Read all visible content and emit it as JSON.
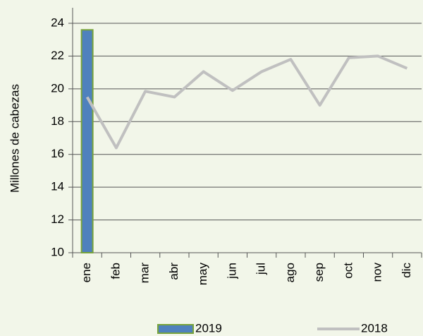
{
  "chart_data": {
    "type": "bar_line",
    "y_label": "Millones de cabezas",
    "categories": [
      "ene",
      "feb",
      "mar",
      "abr",
      "may",
      "jun",
      "jul",
      "ago",
      "sep",
      "oct",
      "nov",
      "dic"
    ],
    "series": [
      {
        "name": "2019",
        "type": "bar",
        "color": "#4f81bd",
        "border": "#77a33a",
        "values": [
          23.6,
          null,
          null,
          null,
          null,
          null,
          null,
          null,
          null,
          null,
          null,
          null
        ]
      },
      {
        "name": "2018",
        "type": "line",
        "color": "#c0c0c0",
        "values": [
          19.5,
          16.4,
          19.85,
          19.5,
          21.05,
          19.9,
          21.05,
          21.8,
          19.0,
          21.9,
          22.0,
          21.25
        ]
      }
    ],
    "ylim": [
      10,
      24
    ],
    "yticks": [
      10,
      12,
      14,
      16,
      18,
      20,
      22,
      24
    ],
    "grid": true,
    "legend": "bottom"
  }
}
